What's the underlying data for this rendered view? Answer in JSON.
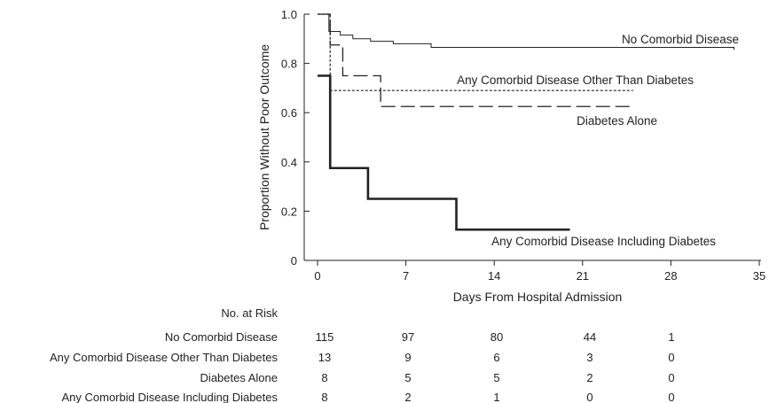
{
  "chart_data": {
    "type": "line",
    "step": true,
    "xlabel": "Days From Hospital Admission",
    "ylabel": "Proportion Without Poor Outcome",
    "xlim": [
      0,
      35
    ],
    "ylim": [
      0,
      1.0
    ],
    "x_ticks": [
      0,
      7,
      14,
      21,
      28,
      35
    ],
    "y_ticks": [
      0,
      0.2,
      0.4,
      0.6,
      0.8,
      1.0
    ],
    "y_tick_labels": [
      "0",
      "0.2",
      "0.4",
      "0.6",
      "0.8",
      "1.0"
    ],
    "grid": false,
    "series": [
      {
        "name": "No Comorbid Disease",
        "style": "solid-thin",
        "x": [
          0,
          0.9,
          1.8,
          2.8,
          4.2,
          6,
          9,
          33
        ],
        "y": [
          1.0,
          0.93,
          0.915,
          0.9,
          0.89,
          0.88,
          0.865,
          0.855
        ]
      },
      {
        "name": "Any Comorbid Disease Other Than Diabetes",
        "style": "dotted",
        "x": [
          0,
          1,
          25
        ],
        "y": [
          1.0,
          0.69,
          0.69
        ]
      },
      {
        "name": "Diabetes Alone",
        "style": "long-dash",
        "x": [
          0,
          1,
          2,
          5,
          25
        ],
        "y": [
          1.0,
          0.875,
          0.75,
          0.625,
          0.625
        ]
      },
      {
        "name": "Any Comorbid Disease Including Diabetes",
        "style": "solid-thick",
        "x": [
          0,
          1,
          4,
          11,
          20
        ],
        "y": [
          0.75,
          0.375,
          0.25,
          0.125,
          0.125
        ]
      }
    ],
    "risk_table": {
      "title": "No. at Risk",
      "days": [
        0,
        7,
        14,
        21,
        28
      ],
      "rows": [
        {
          "label": "No Comorbid Disease",
          "values": [
            "115",
            "97",
            "80",
            "44",
            "1"
          ]
        },
        {
          "label": "Any Comorbid Disease Other Than Diabetes",
          "values": [
            "13",
            "9",
            "6",
            "3",
            "0"
          ]
        },
        {
          "label": "Diabetes Alone",
          "values": [
            "8",
            "5",
            "5",
            "2",
            "0"
          ]
        },
        {
          "label": "Any Comorbid Disease Including Diabetes",
          "values": [
            "8",
            "2",
            "1",
            "0",
            "0"
          ]
        }
      ]
    }
  }
}
